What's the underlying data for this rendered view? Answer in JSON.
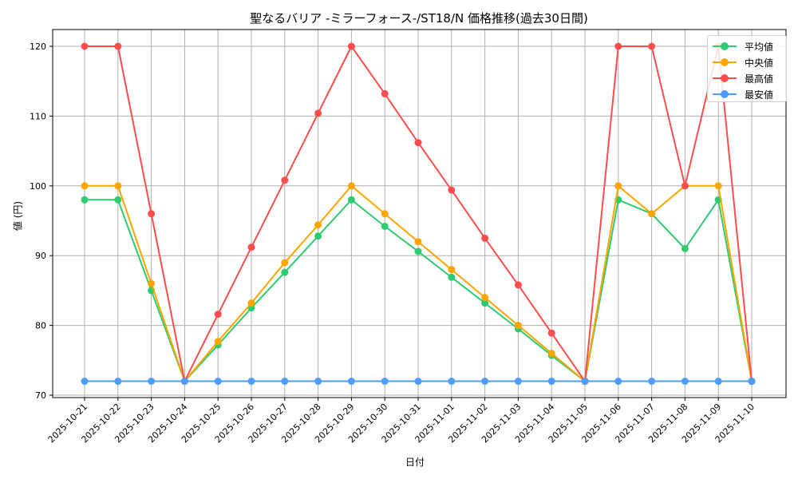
{
  "chart_data": {
    "type": "line",
    "title": "聖なるバリア -ミラーフォース-/ST18/N 価格推移(過去30日間)",
    "xlabel": "日付",
    "ylabel": "値 (円)",
    "ylim": [
      69.5,
      122.5
    ],
    "yticks": [
      70,
      80,
      90,
      100,
      110,
      120
    ],
    "grid": true,
    "legend_position": "upper right",
    "categories": [
      "2025-10-21",
      "2025-10-22",
      "2025-10-23",
      "2025-10-24",
      "2025-10-25",
      "2025-10-26",
      "2025-10-27",
      "2025-10-28",
      "2025-10-29",
      "2025-10-30",
      "2025-10-31",
      "2025-11-01",
      "2025-11-02",
      "2025-11-03",
      "2025-11-04",
      "2025-11-05",
      "2025-11-06",
      "2025-11-07",
      "2025-11-08",
      "2025-11-09",
      "2025-11-10"
    ],
    "series": [
      {
        "name": "平均値",
        "color": "#2ecc71",
        "values": [
          98,
          98,
          85,
          72,
          77.2,
          82.5,
          87.6,
          92.8,
          98,
          94.2,
          90.6,
          86.9,
          83.2,
          79.5,
          75.7,
          72,
          98,
          96,
          91,
          98,
          72
        ]
      },
      {
        "name": "中央値",
        "color": "#ffa500",
        "values": [
          100,
          100,
          86,
          72,
          77.7,
          83.2,
          89,
          94.4,
          100,
          96,
          92,
          88,
          84,
          80,
          76,
          72,
          100,
          96,
          100,
          100,
          72
        ]
      },
      {
        "name": "最高値",
        "color": "#ff4d4d",
        "values": [
          120,
          120,
          96,
          72,
          81.6,
          91.2,
          100.8,
          110.4,
          120,
          113.2,
          106.2,
          99.4,
          92.5,
          85.8,
          78.9,
          72,
          120,
          120,
          100,
          120,
          72
        ]
      },
      {
        "name": "最安値",
        "color": "#4d9dff",
        "values": [
          72,
          72,
          72,
          72,
          72,
          72,
          72,
          72,
          72,
          72,
          72,
          72,
          72,
          72,
          72,
          72,
          72,
          72,
          72,
          72,
          72
        ]
      }
    ]
  }
}
